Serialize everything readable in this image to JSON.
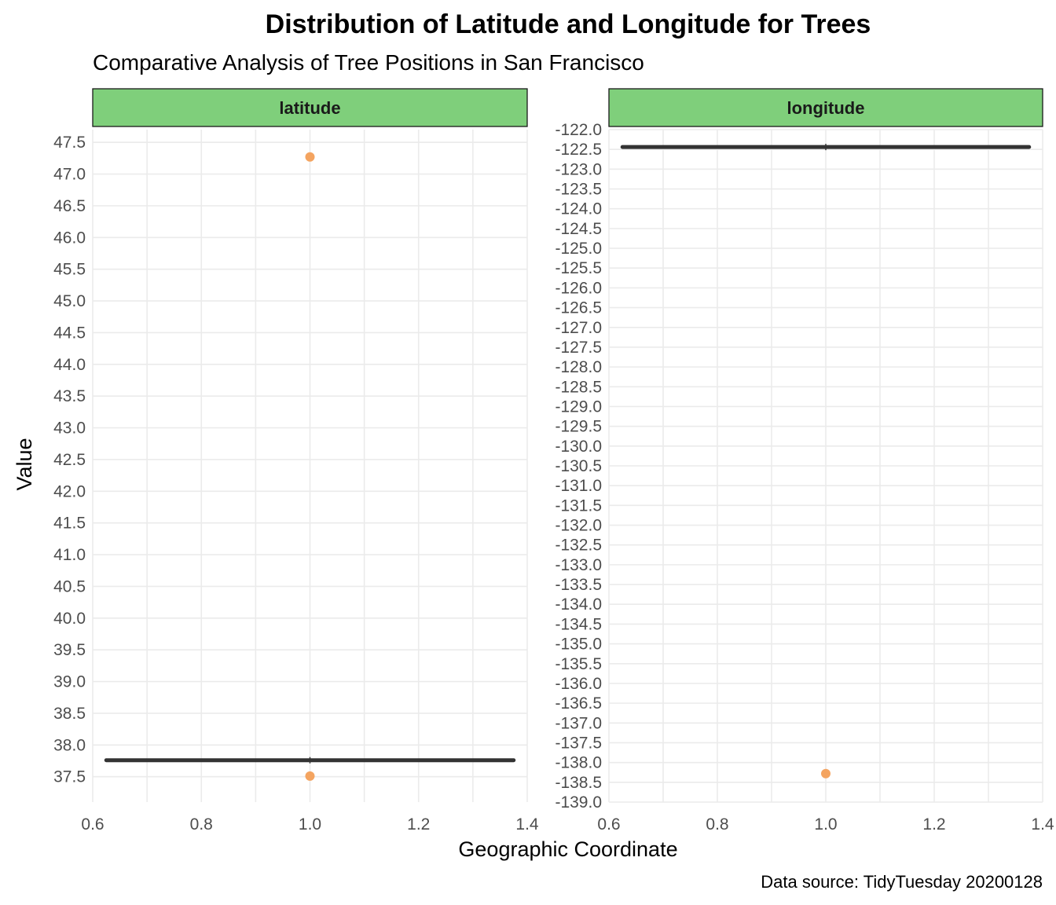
{
  "chart_data": {
    "type": "boxplot",
    "title": "Distribution of Latitude and Longitude for Trees",
    "subtitle": "Comparative Analysis of Tree Positions in San Francisco",
    "xlabel": "Geographic Coordinate",
    "ylabel": "Value",
    "caption": "Data source: TidyTuesday 20200128",
    "strip_fill": "#7fcf7b",
    "outlier_color": "#f4a460",
    "box_color": "#333333",
    "xlim": [
      0.6,
      1.4
    ],
    "x_ticks": [
      "0.6",
      "0.8",
      "1.0",
      "1.2",
      "1.4"
    ],
    "facets": [
      {
        "name": "latitude",
        "ylim": [
          37.1,
          47.7
        ],
        "y_ticks": [
          "37.5",
          "38.0",
          "38.5",
          "39.0",
          "39.5",
          "40.0",
          "40.5",
          "41.0",
          "41.5",
          "42.0",
          "42.5",
          "43.0",
          "43.5",
          "44.0",
          "44.5",
          "45.0",
          "45.5",
          "46.0",
          "46.5",
          "47.0",
          "47.5"
        ],
        "box": {
          "x": 1.0,
          "xmin": 0.625,
          "xmax": 1.375,
          "median": 37.76
        },
        "outliers": [
          47.27,
          37.51
        ]
      },
      {
        "name": "longitude",
        "ylim": [
          -139.0,
          -122.0
        ],
        "y_ticks": [
          "-122.0",
          "-122.5",
          "-123.0",
          "-123.5",
          "-124.0",
          "-124.5",
          "-125.0",
          "-125.5",
          "-126.0",
          "-126.5",
          "-127.0",
          "-127.5",
          "-128.0",
          "-128.5",
          "-129.0",
          "-129.5",
          "-130.0",
          "-130.5",
          "-131.0",
          "-131.5",
          "-132.0",
          "-132.5",
          "-133.0",
          "-133.5",
          "-134.0",
          "-134.5",
          "-135.0",
          "-135.5",
          "-136.0",
          "-136.5",
          "-137.0",
          "-137.5",
          "-138.0",
          "-138.5",
          "-139.0"
        ],
        "box": {
          "x": 1.0,
          "xmin": 0.625,
          "xmax": 1.375,
          "median": -122.44
        },
        "outliers": [
          -138.28
        ]
      }
    ]
  }
}
